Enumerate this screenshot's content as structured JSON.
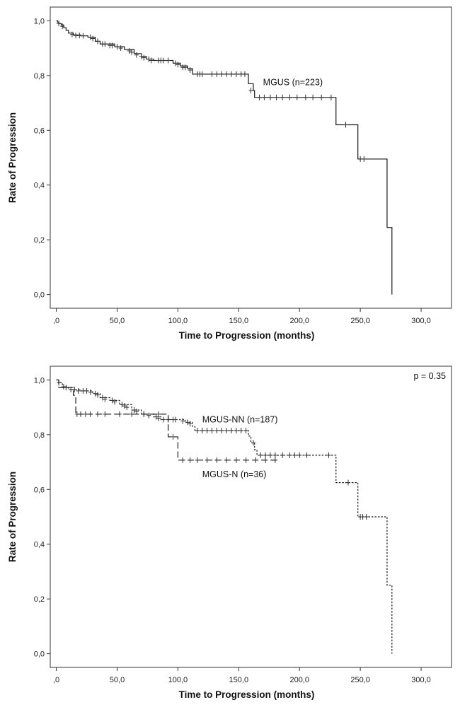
{
  "chart_data": [
    {
      "type": "line",
      "subtype": "kaplan-meier",
      "title": "",
      "xlabel": "Time to Progression (months)",
      "ylabel": "Rate of Progression",
      "xlim": [
        -5,
        325
      ],
      "ylim": [
        -0.05,
        1.05
      ],
      "x_ticks": [
        0,
        50,
        100,
        150,
        200,
        250,
        300
      ],
      "x_tick_labels": [
        ",0",
        "50,0",
        "100,0",
        "150,0",
        "200,0",
        "250,0",
        "300,0"
      ],
      "y_ticks": [
        0,
        0.2,
        0.4,
        0.6,
        0.8,
        1.0
      ],
      "y_tick_labels": [
        "0,0",
        "0,2",
        "0,4",
        "0,6",
        "0,8",
        "1,0"
      ],
      "annotation": "",
      "series": [
        {
          "name": "MGUS (n=223)",
          "style": "solid",
          "label_at": [
            170,
            0.765
          ],
          "steps": [
            [
              0,
              1.0
            ],
            [
              1,
              0.995
            ],
            [
              2,
              0.99
            ],
            [
              4,
              0.985
            ],
            [
              6,
              0.975
            ],
            [
              8,
              0.965
            ],
            [
              10,
              0.955
            ],
            [
              14,
              0.948
            ],
            [
              20,
              0.945
            ],
            [
              26,
              0.94
            ],
            [
              32,
              0.925
            ],
            [
              36,
              0.915
            ],
            [
              48,
              0.905
            ],
            [
              56,
              0.895
            ],
            [
              64,
              0.88
            ],
            [
              70,
              0.87
            ],
            [
              74,
              0.86
            ],
            [
              80,
              0.855
            ],
            [
              90,
              0.855
            ],
            [
              96,
              0.845
            ],
            [
              102,
              0.835
            ],
            [
              108,
              0.825
            ],
            [
              112,
              0.805
            ],
            [
              124,
              0.805
            ],
            [
              158,
              0.77
            ],
            [
              162,
              0.745
            ],
            [
              163,
              0.72
            ],
            [
              230,
              0.62
            ],
            [
              248,
              0.495
            ],
            [
              272,
              0.245
            ],
            [
              276,
              0.0
            ]
          ],
          "censored": [
            [
              2,
              0.99
            ],
            [
              5,
              0.98
            ],
            [
              13,
              0.95
            ],
            [
              16,
              0.946
            ],
            [
              19,
              0.946
            ],
            [
              22,
              0.945
            ],
            [
              28,
              0.94
            ],
            [
              30,
              0.935
            ],
            [
              34,
              0.925
            ],
            [
              38,
              0.915
            ],
            [
              40,
              0.915
            ],
            [
              44,
              0.91
            ],
            [
              46,
              0.91
            ],
            [
              50,
              0.905
            ],
            [
              53,
              0.9
            ],
            [
              60,
              0.89
            ],
            [
              62,
              0.885
            ],
            [
              66,
              0.875
            ],
            [
              70,
              0.87
            ],
            [
              72,
              0.865
            ],
            [
              76,
              0.86
            ],
            [
              78,
              0.855
            ],
            [
              84,
              0.855
            ],
            [
              86,
              0.855
            ],
            [
              88,
              0.855
            ],
            [
              92,
              0.855
            ],
            [
              98,
              0.845
            ],
            [
              100,
              0.84
            ],
            [
              104,
              0.83
            ],
            [
              106,
              0.83
            ],
            [
              110,
              0.82
            ],
            [
              116,
              0.805
            ],
            [
              118,
              0.805
            ],
            [
              120,
              0.805
            ],
            [
              128,
              0.805
            ],
            [
              132,
              0.805
            ],
            [
              136,
              0.805
            ],
            [
              140,
              0.805
            ],
            [
              144,
              0.805
            ],
            [
              148,
              0.805
            ],
            [
              152,
              0.805
            ],
            [
              155,
              0.805
            ],
            [
              160,
              0.745
            ],
            [
              167,
              0.72
            ],
            [
              171,
              0.72
            ],
            [
              176,
              0.72
            ],
            [
              181,
              0.72
            ],
            [
              186,
              0.72
            ],
            [
              192,
              0.72
            ],
            [
              198,
              0.72
            ],
            [
              205,
              0.72
            ],
            [
              211,
              0.72
            ],
            [
              218,
              0.72
            ],
            [
              226,
              0.72
            ],
            [
              238,
              0.62
            ],
            [
              250,
              0.495
            ],
            [
              253,
              0.495
            ]
          ]
        }
      ]
    },
    {
      "type": "line",
      "subtype": "kaplan-meier",
      "title": "",
      "xlabel": "Time to Progression (months)",
      "ylabel": "Rate of Progression",
      "xlim": [
        -5,
        325
      ],
      "ylim": [
        -0.05,
        1.05
      ],
      "x_ticks": [
        0,
        50,
        100,
        150,
        200,
        250,
        300
      ],
      "x_tick_labels": [
        ",0",
        "50,0",
        "100,0",
        "150,0",
        "200,0",
        "250,0",
        "300,0"
      ],
      "y_ticks": [
        0,
        0.2,
        0.4,
        0.6,
        0.8,
        1.0
      ],
      "y_tick_labels": [
        "0,0",
        "0,2",
        "0,4",
        "0,6",
        "0,8",
        "1,0"
      ],
      "annotation": "p = 0.35",
      "series": [
        {
          "name": "MGUS-NN (n=187)",
          "style": "dotted",
          "label_at": [
            120,
            0.845
          ],
          "steps": [
            [
              0,
              1.0
            ],
            [
              2,
              0.99
            ],
            [
              5,
              0.975
            ],
            [
              10,
              0.965
            ],
            [
              20,
              0.96
            ],
            [
              30,
              0.95
            ],
            [
              36,
              0.935
            ],
            [
              44,
              0.925
            ],
            [
              52,
              0.91
            ],
            [
              62,
              0.89
            ],
            [
              70,
              0.875
            ],
            [
              80,
              0.865
            ],
            [
              86,
              0.855
            ],
            [
              100,
              0.855
            ],
            [
              106,
              0.845
            ],
            [
              112,
              0.83
            ],
            [
              114,
              0.815
            ],
            [
              158,
              0.795
            ],
            [
              160,
              0.77
            ],
            [
              163,
              0.745
            ],
            [
              165,
              0.725
            ],
            [
              230,
              0.625
            ],
            [
              248,
              0.5
            ],
            [
              272,
              0.25
            ],
            [
              276,
              0.0
            ]
          ],
          "censored": [
            [
              2,
              0.99
            ],
            [
              6,
              0.975
            ],
            [
              12,
              0.965
            ],
            [
              15,
              0.965
            ],
            [
              18,
              0.96
            ],
            [
              22,
              0.96
            ],
            [
              25,
              0.96
            ],
            [
              28,
              0.955
            ],
            [
              32,
              0.95
            ],
            [
              34,
              0.945
            ],
            [
              38,
              0.935
            ],
            [
              40,
              0.93
            ],
            [
              46,
              0.925
            ],
            [
              48,
              0.92
            ],
            [
              54,
              0.91
            ],
            [
              56,
              0.905
            ],
            [
              58,
              0.9
            ],
            [
              64,
              0.89
            ],
            [
              66,
              0.885
            ],
            [
              72,
              0.875
            ],
            [
              76,
              0.87
            ],
            [
              82,
              0.865
            ],
            [
              84,
              0.86
            ],
            [
              88,
              0.855
            ],
            [
              92,
              0.855
            ],
            [
              96,
              0.855
            ],
            [
              98,
              0.855
            ],
            [
              104,
              0.85
            ],
            [
              108,
              0.845
            ],
            [
              110,
              0.84
            ],
            [
              116,
              0.815
            ],
            [
              120,
              0.815
            ],
            [
              124,
              0.815
            ],
            [
              128,
              0.815
            ],
            [
              132,
              0.815
            ],
            [
              136,
              0.815
            ],
            [
              140,
              0.815
            ],
            [
              144,
              0.815
            ],
            [
              148,
              0.815
            ],
            [
              152,
              0.815
            ],
            [
              156,
              0.815
            ],
            [
              162,
              0.77
            ],
            [
              168,
              0.725
            ],
            [
              172,
              0.725
            ],
            [
              176,
              0.725
            ],
            [
              180,
              0.725
            ],
            [
              186,
              0.725
            ],
            [
              192,
              0.725
            ],
            [
              196,
              0.725
            ],
            [
              200,
              0.725
            ],
            [
              206,
              0.725
            ],
            [
              224,
              0.725
            ],
            [
              240,
              0.625
            ],
            [
              250,
              0.5
            ],
            [
              252,
              0.5
            ],
            [
              255,
              0.5
            ]
          ]
        },
        {
          "name": "MGUS-N (n=36)",
          "style": "dashed",
          "label_at": [
            120,
            0.645
          ],
          "steps": [
            [
              0,
              1.0
            ],
            [
              2,
              0.972
            ],
            [
              14,
              0.944
            ],
            [
              16,
              0.875
            ],
            [
              92,
              0.792
            ],
            [
              100,
              0.707
            ],
            [
              182,
              0.707
            ]
          ],
          "censored": [
            [
              8,
              0.972
            ],
            [
              17,
              0.875
            ],
            [
              20,
              0.875
            ],
            [
              24,
              0.875
            ],
            [
              28,
              0.875
            ],
            [
              34,
              0.875
            ],
            [
              40,
              0.875
            ],
            [
              52,
              0.875
            ],
            [
              62,
              0.875
            ],
            [
              72,
              0.875
            ],
            [
              84,
              0.875
            ],
            [
              96,
              0.792
            ],
            [
              104,
              0.707
            ],
            [
              110,
              0.707
            ],
            [
              116,
              0.707
            ],
            [
              124,
              0.707
            ],
            [
              132,
              0.707
            ],
            [
              140,
              0.707
            ],
            [
              148,
              0.707
            ],
            [
              156,
              0.707
            ],
            [
              164,
              0.707
            ],
            [
              172,
              0.707
            ],
            [
              180,
              0.707
            ]
          ]
        }
      ]
    }
  ]
}
